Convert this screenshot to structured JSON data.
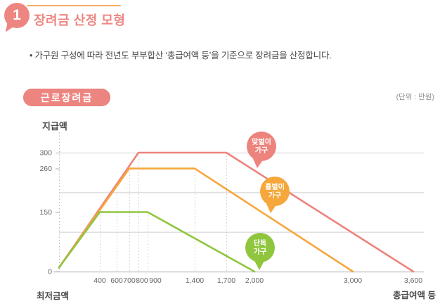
{
  "header": {
    "section_number": "1",
    "title": "장려금 산정 모형",
    "bullet": "• 가구원 구성에 따라 전년도 부부합산 ‘총급여액 등’을 기준으로 장려금을 산정합니다."
  },
  "section": {
    "badge": "근로장려금",
    "unit_note": "(단위 : 만원)"
  },
  "colors": {
    "salmon": "#ED837D",
    "orange": "#F5A73B",
    "green": "#8FC63E",
    "grid": "#cfcfcf",
    "axis": "#c9c9c9",
    "tick_text": "#666666"
  },
  "chart_data": {
    "type": "line",
    "title": "근로장려금",
    "unit": "만원",
    "ylabel": "지급액",
    "xlabel": "총급여액 등",
    "x_start_label": "최저금액",
    "xlim": [
      0,
      3800
    ],
    "ylim": [
      0,
      320
    ],
    "grid": "horizontal lines at 100/200/300; dotted guides at breakpoints",
    "legend_position": "bubbles on lines",
    "y_ticks": [
      {
        "value": 300,
        "label": "300"
      },
      {
        "value": 260,
        "label": "260"
      },
      {
        "value": 150,
        "label": "150"
      },
      {
        "value": 0,
        "label": "0"
      }
    ],
    "gridline_values": [
      100,
      200,
      300
    ],
    "x_ticks": [
      {
        "value": 400,
        "label": "400"
      },
      {
        "value": 600,
        "label": "600"
      },
      {
        "value": 700,
        "label": "700"
      },
      {
        "value": 800,
        "label": "800"
      },
      {
        "value": 900,
        "label": "900"
      },
      {
        "value": 1400,
        "label": "1,400"
      },
      {
        "value": 1700,
        "label": "1,700"
      },
      {
        "value": 2000,
        "label": "2,000"
      },
      {
        "value": 3000,
        "label": "3,000"
      },
      {
        "value": 3600,
        "label": "3,600"
      }
    ],
    "guide_lines": [
      {
        "x": 400,
        "top": 150
      },
      {
        "x": 600,
        "top": 195
      },
      {
        "x": 700,
        "top": 260
      },
      {
        "x": 800,
        "top": 300
      },
      {
        "x": 900,
        "top": 150
      },
      {
        "x": 1400,
        "top": 260
      },
      {
        "x": 1700,
        "top": 300
      }
    ],
    "series": [
      {
        "name": "맞벌이 가구",
        "label_lines": [
          "맞벌이",
          "가구"
        ],
        "color": "#ED837D",
        "max_payment": 300,
        "points": [
          [
            0,
            10
          ],
          [
            800,
            300
          ],
          [
            1700,
            300
          ],
          [
            3600,
            0
          ]
        ]
      },
      {
        "name": "홑벌이 가구",
        "label_lines": [
          "홑벌이",
          "가구"
        ],
        "color": "#F5A73B",
        "max_payment": 260,
        "points": [
          [
            0,
            10
          ],
          [
            700,
            260
          ],
          [
            1400,
            260
          ],
          [
            3000,
            0
          ]
        ]
      },
      {
        "name": "단독 가구",
        "label_lines": [
          "단독",
          "가구"
        ],
        "color": "#8FC63E",
        "max_payment": 150,
        "points": [
          [
            0,
            10
          ],
          [
            400,
            150
          ],
          [
            900,
            150
          ],
          [
            2000,
            0
          ]
        ]
      }
    ]
  }
}
